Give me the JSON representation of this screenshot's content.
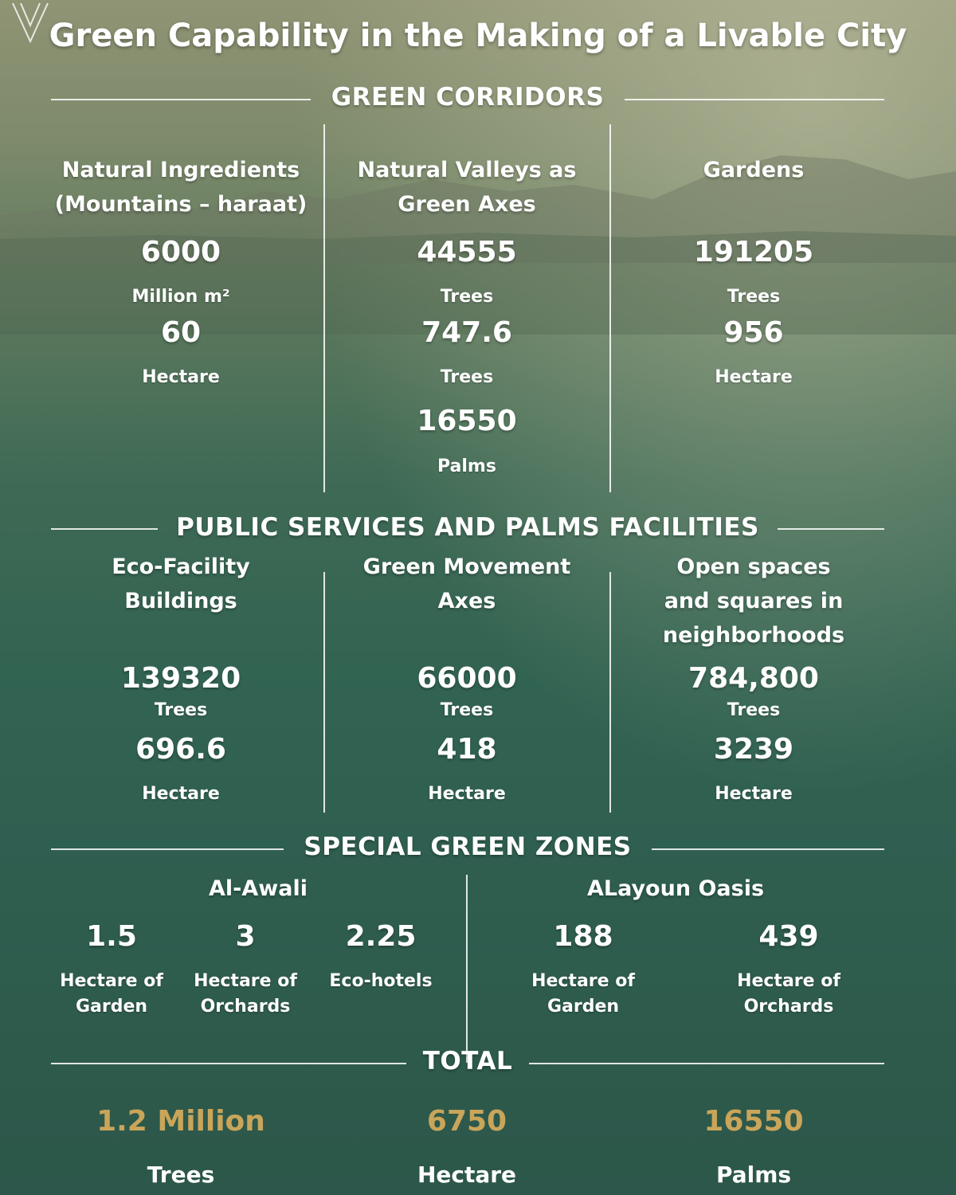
{
  "title": "Green Capability in the Making of a Livable City",
  "sections": {
    "green_corridors": {
      "heading": "GREEN CORRIDORS",
      "columns": [
        {
          "title_lines": [
            "Natural Ingredients",
            "(Mountains – haraat)"
          ],
          "stats": [
            {
              "value": "6000",
              "unit": "Million m²"
            },
            {
              "value": "60",
              "unit": "Hectare"
            }
          ]
        },
        {
          "title_lines": [
            "Natural Valleys as",
            "Green Axes"
          ],
          "stats": [
            {
              "value": "44555",
              "unit": "Trees"
            },
            {
              "value": "747.6",
              "unit": "Trees"
            },
            {
              "value": "16550",
              "unit": "Palms"
            }
          ]
        },
        {
          "title_lines": [
            "Gardens"
          ],
          "stats": [
            {
              "value": "191205",
              "unit": "Trees"
            },
            {
              "value": "956",
              "unit": "Hectare"
            }
          ]
        }
      ]
    },
    "public_services": {
      "heading": "PUBLIC SERVICES AND PALMS FACILITIES",
      "columns": [
        {
          "title_lines": [
            "Eco-Facility",
            "Buildings"
          ],
          "stats": [
            {
              "value": "139320",
              "unit": "Trees"
            },
            {
              "value": "696.6",
              "unit": "Hectare"
            }
          ]
        },
        {
          "title_lines": [
            "Green Movement",
            "Axes"
          ],
          "stats": [
            {
              "value": "66000",
              "unit": "Trees"
            },
            {
              "value": "418",
              "unit": "Hectare"
            }
          ]
        },
        {
          "title_lines": [
            "Open spaces",
            "and squares in",
            "neighborhoods"
          ],
          "stats": [
            {
              "value": "784,800",
              "unit": "Trees"
            },
            {
              "value": "3239",
              "unit": "Hectare"
            }
          ]
        }
      ]
    },
    "special_zones": {
      "heading": "SPECIAL GREEN ZONES",
      "groups": [
        {
          "name": "Al-Awali",
          "stats": [
            {
              "value": "1.5",
              "unit_lines": [
                "Hectare of",
                "Garden"
              ]
            },
            {
              "value": "3",
              "unit_lines": [
                "Hectare of",
                "Orchards"
              ]
            },
            {
              "value": "2.25",
              "unit_lines": [
                "Eco-hotels"
              ]
            }
          ]
        },
        {
          "name": "ALayoun Oasis",
          "stats": [
            {
              "value": "188",
              "unit_lines": [
                "Hectare of",
                "Garden"
              ]
            },
            {
              "value": "439",
              "unit_lines": [
                "Hectare of",
                "Orchards"
              ]
            }
          ]
        }
      ]
    },
    "total": {
      "heading": "TOTAL",
      "items": [
        {
          "value": "1.2 Million",
          "unit": "Trees"
        },
        {
          "value": "6750",
          "unit": "Hectare"
        },
        {
          "value": "16550",
          "unit": "Palms"
        }
      ]
    }
  },
  "colors": {
    "accent_gold": "#c9a55a",
    "text": "#ffffff"
  }
}
